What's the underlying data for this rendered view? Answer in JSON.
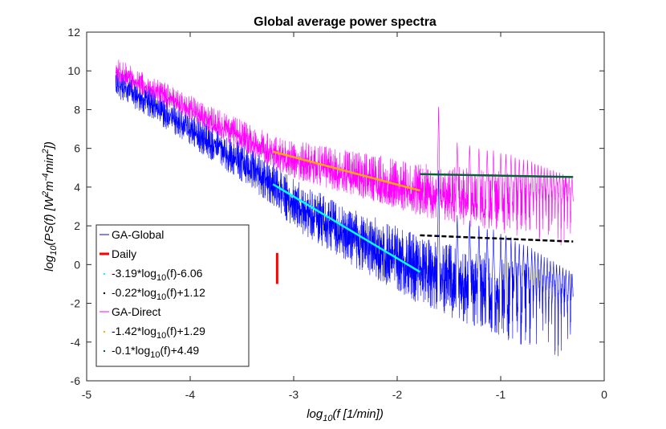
{
  "chart_data": {
    "type": "line",
    "title": "Global average power spectra",
    "xlabel": "log10(f [1/min])",
    "ylabel": "log10(PS(f) [W2 m-4 min2])",
    "xlim": [
      -5,
      0
    ],
    "ylim": [
      -6,
      12
    ],
    "xticks": [
      -5,
      -4,
      -3,
      -2,
      -1,
      0
    ],
    "yticks": [
      -6,
      -4,
      -2,
      0,
      2,
      4,
      6,
      8,
      10,
      12
    ],
    "xtick_labels": [
      "-5",
      "-4",
      "-3",
      "-2",
      "-1",
      "0"
    ],
    "ytick_labels": [
      "-6",
      "-4",
      "-2",
      "0",
      "2",
      "4",
      "6",
      "8",
      "10",
      "12"
    ],
    "grid": false,
    "legend_position": "bottom-left",
    "series": [
      {
        "name": "GA-Global",
        "color": "#0000ff",
        "style": "noisy-spectrum",
        "x_range": [
          -4.72,
          -0.3
        ],
        "trend_points": [
          [
            -4.72,
            9.6
          ],
          [
            -4.5,
            9.0
          ],
          [
            -4.0,
            7.2
          ],
          [
            -3.5,
            5.6
          ],
          [
            -3.2,
            4.5
          ],
          [
            -3.0,
            3.5
          ],
          [
            -2.5,
            2.0
          ],
          [
            -2.0,
            0.8
          ],
          [
            -1.78,
            0.2
          ],
          [
            -0.3,
            -2.2
          ]
        ],
        "noise_amplitude": 1.1
      },
      {
        "name": "GA-Direct",
        "color": "#ff00ff",
        "style": "noisy-spectrum",
        "x_range": [
          -4.72,
          -0.3
        ],
        "trend_points": [
          [
            -4.72,
            10.2
          ],
          [
            -4.5,
            9.6
          ],
          [
            -4.0,
            8.2
          ],
          [
            -3.5,
            6.8
          ],
          [
            -3.2,
            6.0
          ],
          [
            -3.0,
            5.6
          ],
          [
            -2.5,
            5.0
          ],
          [
            -2.0,
            4.4
          ],
          [
            -1.78,
            4.1
          ],
          [
            -0.3,
            3.0
          ]
        ],
        "noise_amplitude": 1.0
      },
      {
        "name": "Daily",
        "color": "#ff0000",
        "style": "vertical-marker",
        "x": -3.16,
        "y_range": [
          -1.0,
          0.6
        ]
      },
      {
        "name": "-3.19*log10(f)-6.06",
        "color": "#00ffff",
        "style": "fit-line",
        "x": [
          -3.2,
          -1.78
        ],
        "y": [
          4.15,
          -0.38
        ]
      },
      {
        "name": "-0.22*log10(f)+1.12",
        "color": "#000000",
        "style": "fit-line-dashed",
        "x": [
          -1.78,
          -0.3
        ],
        "y": [
          1.51,
          1.19
        ]
      },
      {
        "name": "-1.42*log10(f)+1.29",
        "color": "#ffaa00",
        "style": "fit-line",
        "x": [
          -3.2,
          -1.78
        ],
        "y": [
          5.83,
          3.82
        ]
      },
      {
        "name": "-0.1*log10(f)+4.49",
        "color": "#006633",
        "style": "fit-line",
        "x": [
          -1.78,
          -0.3
        ],
        "y": [
          4.67,
          4.52
        ]
      }
    ],
    "peaks": [
      -1.6,
      -1.42,
      -1.3,
      -1.21,
      -1.13,
      -1.07,
      -1.0,
      -0.95,
      -0.9,
      -0.86,
      -0.82,
      -0.78,
      -0.74,
      -0.7,
      -0.67,
      -0.64,
      -0.61,
      -0.58,
      -0.55,
      -0.52,
      -0.49,
      -0.46,
      -0.43,
      -0.4,
      -0.37,
      -0.34,
      -0.31
    ],
    "legend": [
      {
        "label": "GA-Global",
        "color": "#0000ff",
        "marker": "line"
      },
      {
        "label": "Daily",
        "color": "#ff0000",
        "marker": "thick-line"
      },
      {
        "label_main": "-3.19*log",
        "label_sub": "10",
        "label_tail": "(f)-6.06",
        "color": "#00ffff",
        "marker": "dot"
      },
      {
        "label_main": "-0.22*log",
        "label_sub": "10",
        "label_tail": "(f)+1.12",
        "color": "#000000",
        "marker": "dot"
      },
      {
        "label": "GA-Direct",
        "color": "#ff00ff",
        "marker": "line"
      },
      {
        "label_main": "-1.42*log",
        "label_sub": "10",
        "label_tail": "(f)+1.29",
        "color": "#ffaa00",
        "marker": "dot"
      },
      {
        "label_main": "-0.1*log",
        "label_sub": "10",
        "label_tail": "(f)+4.49",
        "color": "#006633",
        "marker": "dot"
      }
    ]
  }
}
